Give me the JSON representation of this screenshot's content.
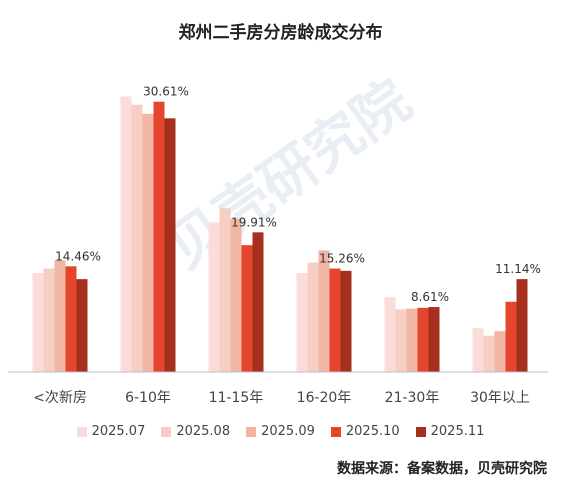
{
  "chart_data": {
    "type": "bar",
    "title": "郑州二手房分房龄成交分布",
    "categories": [
      "<次新房",
      "6-10年",
      "11-15年",
      "16-20年",
      "21-30年",
      "30年以上"
    ],
    "series": [
      {
        "name": "2025.07",
        "color": "#FADCD8",
        "values": [
          13.1,
          36.5,
          19.8,
          13.1,
          9.9,
          5.8
        ]
      },
      {
        "name": "2025.08",
        "color": "#F6CEC4",
        "values": [
          13.7,
          35.4,
          21.7,
          14.5,
          8.3,
          4.8
        ]
      },
      {
        "name": "2025.09",
        "color": "#F1B5A4",
        "values": [
          14.8,
          34.2,
          20.3,
          16.1,
          8.4,
          5.4
        ]
      },
      {
        "name": "2025.10",
        "color": "#E3462D",
        "values": [
          14.0,
          35.8,
          16.8,
          13.7,
          8.5,
          9.3
        ]
      },
      {
        "name": "2025.11",
        "color": "#A62F1F",
        "values": [
          12.3,
          33.6,
          18.5,
          13.4,
          8.6,
          12.3
        ]
      }
    ],
    "annotations": [
      "14.46%",
      "30.61%",
      "19.91%",
      "15.26%",
      "8.61%",
      "11.14%"
    ],
    "ylim": [
      0,
      40
    ],
    "grid": false,
    "legend_position": "bottom"
  },
  "watermark": "贝壳研究院",
  "source": "数据来源：备案数据，贝壳研究院"
}
